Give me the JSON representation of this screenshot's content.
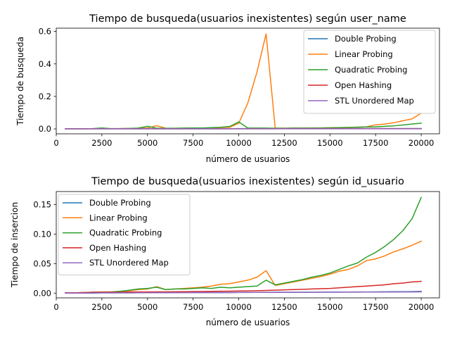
{
  "chart_data": [
    {
      "type": "line",
      "title": "Tiempo de busqueda(usuarios inexistentes) según user_name",
      "xlabel": "número de usuarios",
      "ylabel": "Tiempo de busqueda",
      "xlim": [
        0,
        21000
      ],
      "ylim": [
        -0.03,
        0.62
      ],
      "xticks": [
        0,
        2500,
        5000,
        7500,
        10000,
        12500,
        15000,
        17500,
        20000
      ],
      "xtick_labels": [
        "0",
        "2500",
        "5000",
        "7500",
        "10000",
        "12500",
        "15000",
        "17500",
        "20000"
      ],
      "yticks": [
        0.0,
        0.2,
        0.4,
        0.6
      ],
      "ytick_labels": [
        "0.0",
        "0.2",
        "0.4",
        "0.6"
      ],
      "legend_position": "top-right",
      "grid": false,
      "x": [
        500,
        1000,
        1500,
        2000,
        2500,
        3000,
        3500,
        4000,
        4500,
        5000,
        5500,
        6000,
        6500,
        7000,
        7500,
        8000,
        8500,
        9000,
        9500,
        10000,
        10500,
        11000,
        11500,
        12000,
        12500,
        13000,
        13500,
        14000,
        14500,
        15000,
        15500,
        16000,
        16500,
        17000,
        17500,
        18000,
        18500,
        19000,
        19500,
        20000
      ],
      "series": [
        {
          "name": "Double Probing",
          "color": "#1f77b4",
          "values": [
            0.001,
            0.001,
            0.001,
            0.001,
            0.001,
            0.001,
            0.001,
            0.001,
            0.001,
            0.001,
            0.001,
            0.001,
            0.001,
            0.001,
            0.001,
            0.001,
            0.001,
            0.001,
            0.001,
            0.002,
            0.002,
            0.002,
            0.002,
            0.002,
            0.002,
            0.002,
            0.002,
            0.002,
            0.002,
            0.002,
            0.002,
            0.002,
            0.002,
            0.002,
            0.002,
            0.002,
            0.002,
            0.002,
            0.002,
            0.002
          ]
        },
        {
          "name": "Linear Probing",
          "color": "#ff7f0e",
          "values": [
            0.001,
            0.001,
            0.001,
            0.001,
            0.003,
            0.001,
            0.002,
            0.003,
            0.004,
            0.006,
            0.02,
            0.004,
            0.003,
            0.004,
            0.005,
            0.005,
            0.006,
            0.008,
            0.01,
            0.035,
            0.16,
            0.35,
            0.585,
            0.005,
            0.004,
            0.004,
            0.004,
            0.005,
            0.006,
            0.007,
            0.008,
            0.009,
            0.011,
            0.013,
            0.025,
            0.03,
            0.038,
            0.05,
            0.062,
            0.097
          ]
        },
        {
          "name": "Quadratic Probing",
          "color": "#2ca02c",
          "values": [
            0.001,
            0.001,
            0.001,
            0.002,
            0.006,
            0.002,
            0.002,
            0.003,
            0.005,
            0.016,
            0.004,
            0.004,
            0.004,
            0.005,
            0.006,
            0.006,
            0.008,
            0.01,
            0.015,
            0.043,
            0.005,
            0.005,
            0.005,
            0.004,
            0.004,
            0.005,
            0.005,
            0.005,
            0.006,
            0.007,
            0.008,
            0.009,
            0.01,
            0.012,
            0.013,
            0.016,
            0.019,
            0.024,
            0.03,
            0.035
          ]
        },
        {
          "name": "Open Hashing",
          "color": "#d62728",
          "values": [
            0.001,
            0.001,
            0.001,
            0.001,
            0.001,
            0.001,
            0.001,
            0.001,
            0.001,
            0.001,
            0.001,
            0.001,
            0.001,
            0.001,
            0.001,
            0.001,
            0.001,
            0.001,
            0.001,
            0.001,
            0.001,
            0.001,
            0.001,
            0.001,
            0.002,
            0.002,
            0.002,
            0.002,
            0.002,
            0.002,
            0.002,
            0.002,
            0.002,
            0.002,
            0.002,
            0.002,
            0.002,
            0.002,
            0.002,
            0.002
          ]
        },
        {
          "name": "STL Unordered Map",
          "color": "#9467bd",
          "values": [
            0.001,
            0.001,
            0.001,
            0.001,
            0.001,
            0.001,
            0.001,
            0.001,
            0.001,
            0.001,
            0.001,
            0.001,
            0.001,
            0.001,
            0.001,
            0.001,
            0.001,
            0.001,
            0.001,
            0.001,
            0.001,
            0.001,
            0.001,
            0.001,
            0.001,
            0.001,
            0.001,
            0.001,
            0.001,
            0.001,
            0.001,
            0.001,
            0.001,
            0.001,
            0.001,
            0.001,
            0.001,
            0.001,
            0.001,
            0.001
          ]
        }
      ]
    },
    {
      "type": "line",
      "title": "Tiempo de busqueda(usuarios inexistentes) según id_usuario",
      "xlabel": "número de usuarios",
      "ylabel": "Tiempo de insercion",
      "xlim": [
        0,
        21000
      ],
      "ylim": [
        -0.008,
        0.172
      ],
      "xticks": [
        0,
        2500,
        5000,
        7500,
        10000,
        12500,
        15000,
        17500,
        20000
      ],
      "xtick_labels": [
        "0",
        "2500",
        "5000",
        "7500",
        "10000",
        "12500",
        "15000",
        "17500",
        "20000"
      ],
      "yticks": [
        0.0,
        0.05,
        0.1,
        0.15
      ],
      "ytick_labels": [
        "0.00",
        "0.05",
        "0.10",
        "0.15"
      ],
      "legend_position": "top-left",
      "grid": false,
      "x": [
        500,
        1000,
        1500,
        2000,
        2500,
        3000,
        3500,
        4000,
        4500,
        5000,
        5500,
        6000,
        6500,
        7000,
        7500,
        8000,
        8500,
        9000,
        9500,
        10000,
        10500,
        11000,
        11500,
        12000,
        12500,
        13000,
        13500,
        14000,
        14500,
        15000,
        15500,
        16000,
        16500,
        17000,
        17500,
        18000,
        18500,
        19000,
        19500,
        20000
      ],
      "series": [
        {
          "name": "Double Probing",
          "color": "#1f77b4",
          "values": [
            0.0,
            0.0,
            0.0,
            0.0,
            0.0005,
            0.0005,
            0.0005,
            0.0005,
            0.0007,
            0.0008,
            0.0008,
            0.0008,
            0.0009,
            0.001,
            0.001,
            0.001,
            0.001,
            0.001,
            0.001,
            0.0012,
            0.0012,
            0.0013,
            0.0014,
            0.0015,
            0.0015,
            0.0016,
            0.0016,
            0.0016,
            0.0017,
            0.0018,
            0.0018,
            0.0019,
            0.002,
            0.002,
            0.0022,
            0.0023,
            0.0024,
            0.0025,
            0.0026,
            0.003
          ]
        },
        {
          "name": "Linear Probing",
          "color": "#ff7f0e",
          "values": [
            0.0005,
            0.0005,
            0.001,
            0.0015,
            0.002,
            0.002,
            0.003,
            0.004,
            0.006,
            0.007,
            0.011,
            0.006,
            0.007,
            0.008,
            0.009,
            0.01,
            0.012,
            0.015,
            0.016,
            0.019,
            0.022,
            0.027,
            0.038,
            0.013,
            0.016,
            0.019,
            0.022,
            0.025,
            0.028,
            0.032,
            0.037,
            0.04,
            0.046,
            0.055,
            0.058,
            0.063,
            0.07,
            0.075,
            0.081,
            0.088
          ]
        },
        {
          "name": "Quadratic Probing",
          "color": "#2ca02c",
          "values": [
            0.0005,
            0.0005,
            0.001,
            0.0015,
            0.0015,
            0.002,
            0.003,
            0.005,
            0.007,
            0.008,
            0.01,
            0.006,
            0.007,
            0.007,
            0.008,
            0.009,
            0.008,
            0.01,
            0.009,
            0.01,
            0.011,
            0.012,
            0.022,
            0.014,
            0.017,
            0.02,
            0.023,
            0.027,
            0.03,
            0.034,
            0.04,
            0.046,
            0.051,
            0.061,
            0.069,
            0.079,
            0.091,
            0.106,
            0.126,
            0.162
          ]
        },
        {
          "name": "Open Hashing",
          "color": "#d62728",
          "values": [
            0.0005,
            0.0005,
            0.001,
            0.0015,
            0.0015,
            0.0015,
            0.0015,
            0.002,
            0.002,
            0.002,
            0.0022,
            0.0022,
            0.0023,
            0.0025,
            0.0027,
            0.0028,
            0.003,
            0.0032,
            0.0034,
            0.0036,
            0.0038,
            0.004,
            0.0045,
            0.005,
            0.0055,
            0.006,
            0.0065,
            0.007,
            0.0075,
            0.008,
            0.009,
            0.01,
            0.011,
            0.012,
            0.013,
            0.014,
            0.016,
            0.017,
            0.019,
            0.02
          ]
        },
        {
          "name": "STL Unordered Map",
          "color": "#9467bd",
          "values": [
            0.0,
            0.0,
            0.0,
            0.0005,
            0.0005,
            0.0005,
            0.0005,
            0.0005,
            0.0007,
            0.0007,
            0.0008,
            0.0008,
            0.0008,
            0.0009,
            0.0009,
            0.001,
            0.001,
            0.001,
            0.001,
            0.0011,
            0.0011,
            0.0012,
            0.0012,
            0.0013,
            0.0013,
            0.0014,
            0.0014,
            0.0015,
            0.0015,
            0.0016,
            0.0016,
            0.0017,
            0.0017,
            0.0018,
            0.0018,
            0.0019,
            0.0019,
            0.002,
            0.002,
            0.0021
          ]
        }
      ]
    }
  ]
}
